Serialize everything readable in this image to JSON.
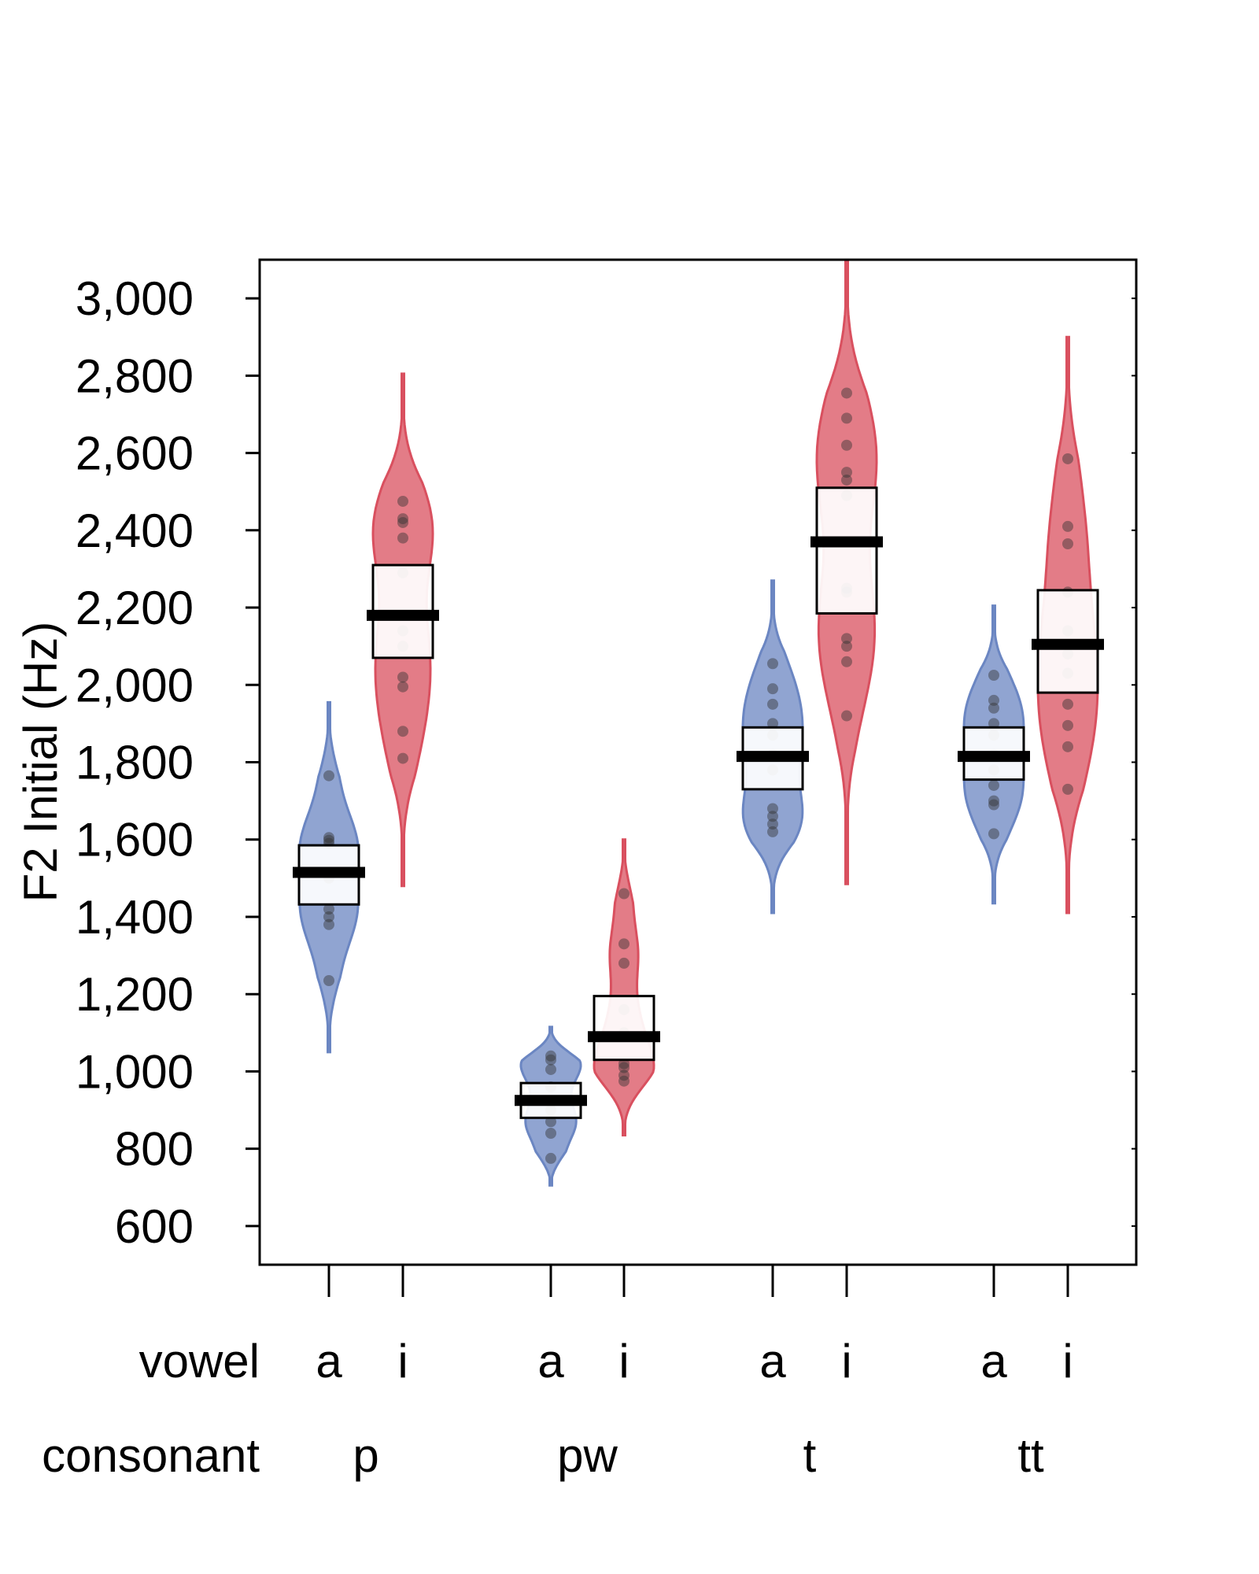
{
  "chart_data": {
    "type": "violin",
    "ylabel": "F2 Initial (Hz)",
    "ylim": [
      500,
      3100
    ],
    "yticks": [
      600,
      800,
      1000,
      1200,
      1400,
      1600,
      1800,
      2000,
      2200,
      2400,
      2600,
      2800,
      3000
    ],
    "ytick_labels": [
      "600",
      "800",
      "1,000",
      "1,200",
      "1,400",
      "1,600",
      "1,800",
      "2,000",
      "2,200",
      "2,400",
      "2,600",
      "2,800",
      "3,000"
    ],
    "grid": false,
    "row_labels": {
      "vowel": "vowel",
      "consonant": "consonant"
    },
    "consonants": [
      "p",
      "pw",
      "t",
      "tt"
    ],
    "colors": {
      "a": "#6b86c2",
      "i": "#d9505f"
    },
    "groups": [
      {
        "consonant": "p",
        "vowel": "a",
        "mean": 1515,
        "ci": [
          1432,
          1585
        ],
        "range": [
          1050,
          1955
        ],
        "points": [
          1765,
          1605,
          1598,
          1590,
          1500,
          1420,
          1400,
          1380,
          1235
        ]
      },
      {
        "consonant": "p",
        "vowel": "i",
        "mean": 2180,
        "ci": [
          2070,
          2310
        ],
        "range": [
          1480,
          2805
        ],
        "points": [
          2475,
          2430,
          2420,
          2380,
          2290,
          2140,
          2100,
          2020,
          1995,
          1880,
          1810
        ]
      },
      {
        "consonant": "pw",
        "vowel": "a",
        "mean": 925,
        "ci": [
          880,
          970
        ],
        "range": [
          705,
          1115
        ],
        "points": [
          1040,
          1030,
          1005,
          960,
          900,
          870,
          840,
          775
        ]
      },
      {
        "consonant": "pw",
        "vowel": "i",
        "mean": 1090,
        "ci": [
          1030,
          1195
        ],
        "range": [
          835,
          1600
        ],
        "points": [
          1460,
          1330,
          1280,
          1160,
          1100,
          1020,
          1010,
          990,
          975
        ]
      },
      {
        "consonant": "t",
        "vowel": "a",
        "mean": 1815,
        "ci": [
          1730,
          1890
        ],
        "range": [
          1410,
          2270
        ],
        "points": [
          2055,
          1990,
          1950,
          1900,
          1870,
          1820,
          1780,
          1680,
          1660,
          1640,
          1620
        ]
      },
      {
        "consonant": "t",
        "vowel": "i",
        "mean": 2370,
        "ci": [
          2185,
          2510
        ],
        "range": [
          1485,
          3100
        ],
        "points": [
          2755,
          2690,
          2620,
          2550,
          2530,
          2490,
          2250,
          2240,
          2120,
          2100,
          2060,
          1920
        ]
      },
      {
        "consonant": "tt",
        "vowel": "a",
        "mean": 1815,
        "ci": [
          1755,
          1890
        ],
        "range": [
          1435,
          2205
        ],
        "points": [
          2025,
          1960,
          1940,
          1900,
          1870,
          1820,
          1780,
          1740,
          1700,
          1690,
          1615
        ]
      },
      {
        "consonant": "tt",
        "vowel": "i",
        "mean": 2105,
        "ci": [
          1980,
          2245
        ],
        "range": [
          1410,
          2900
        ],
        "points": [
          2585,
          2410,
          2365,
          2240,
          2140,
          2080,
          2030,
          1950,
          1895,
          1840,
          1730
        ]
      }
    ]
  }
}
